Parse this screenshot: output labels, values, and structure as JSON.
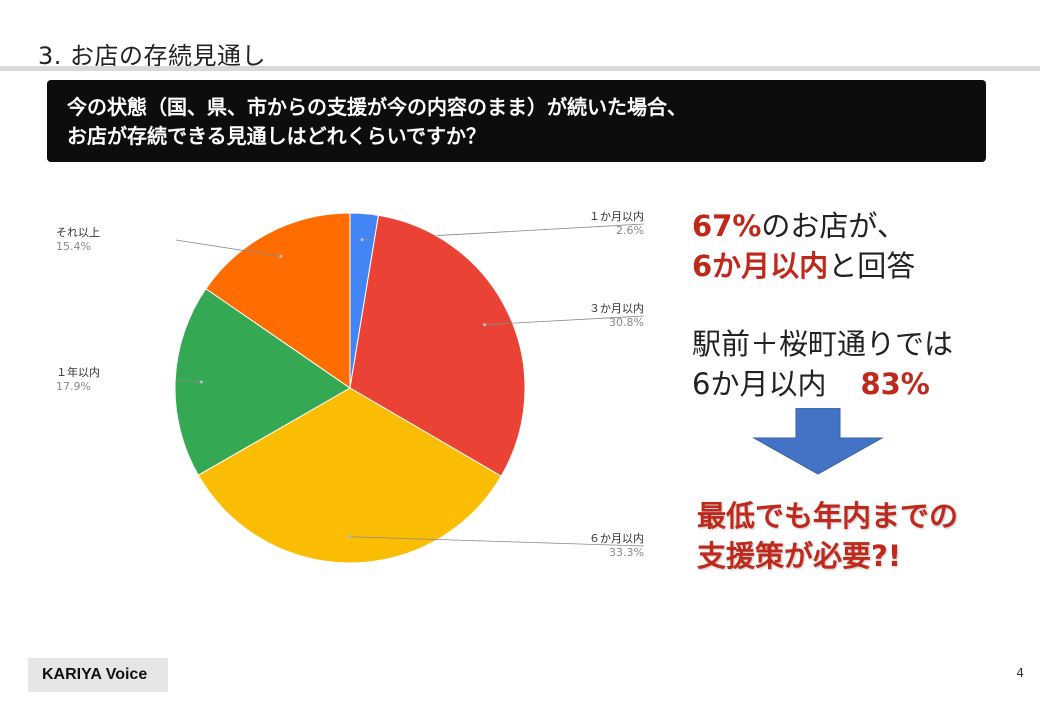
{
  "slide": {
    "title": "3. お店の存続見通し",
    "question_line1": "今の状態（国、県、市からの支援が今の内容のまま）が続いた場合、",
    "question_line2": "お店が存続できる見通しはどれくらいですか？",
    "page_number": "4",
    "footer_logo": "KARIYA Voice"
  },
  "summary": {
    "line1_highlight": "67%",
    "line1_rest": "のお店が、",
    "line2_highlight": "6か月以内",
    "line2_rest": "と回答",
    "line3": "駅前＋桜町通りでは",
    "line4_lead": "6か月以内",
    "line4_highlight": "83%"
  },
  "conclusion": {
    "line1": "最低でも年内までの",
    "line2": "支援策が必要?!"
  },
  "colors": {
    "accent_red": "#c0281c",
    "arrow_blue": "#4472c4"
  },
  "chart_data": {
    "type": "pie",
    "title": "",
    "slices": [
      {
        "label": "１か月以内",
        "value": 2.6,
        "display": "2.6%",
        "color": "#4285f4"
      },
      {
        "label": "３か月以内",
        "value": 30.8,
        "display": "30.8%",
        "color": "#ea4335"
      },
      {
        "label": "６か月以内",
        "value": 33.3,
        "display": "33.3%",
        "color": "#fbbc04"
      },
      {
        "label": "１年以内",
        "value": 17.9,
        "display": "17.9%",
        "color": "#34a853"
      },
      {
        "label": "それ以上",
        "value": 15.4,
        "display": "15.4%",
        "color": "#ff6d01"
      }
    ]
  }
}
